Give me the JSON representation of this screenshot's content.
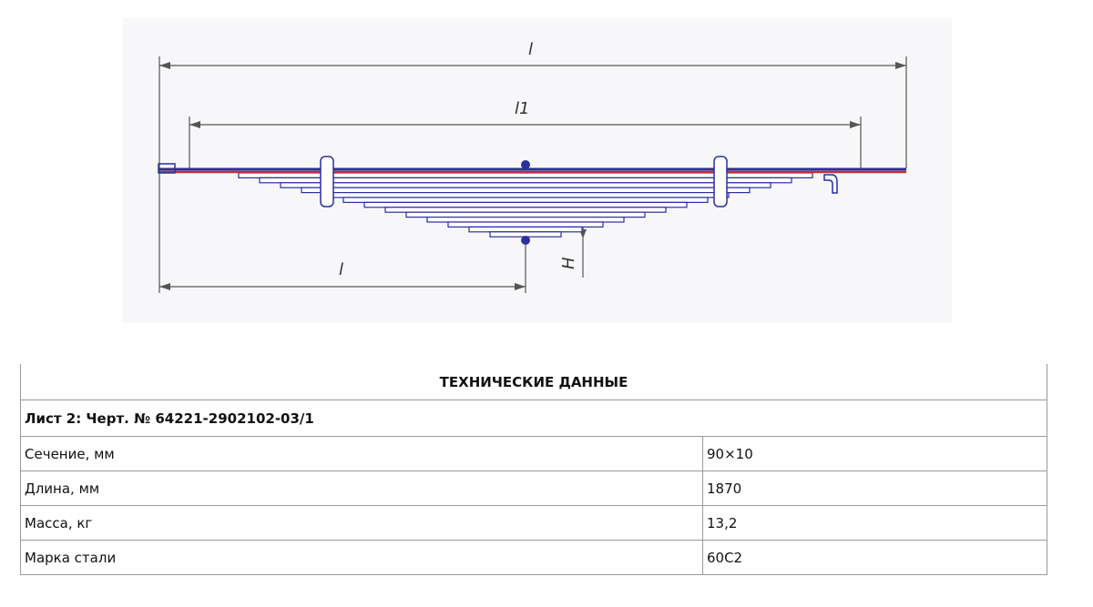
{
  "drawing": {
    "dimension_labels": [
      "l",
      "l1",
      "l",
      "H"
    ]
  },
  "table": {
    "title": "ТЕХНИЧЕСКИЕ ДАННЫЕ",
    "subtitle": "Лист 2: Черт. № 64221-2902102-03/1",
    "rows": [
      [
        "Сечение, мм",
        "90×10"
      ],
      [
        "Длина, мм",
        "1870"
      ],
      [
        "Масса, кг",
        "13,2"
      ],
      [
        "Марка стали",
        "60С2"
      ]
    ]
  }
}
